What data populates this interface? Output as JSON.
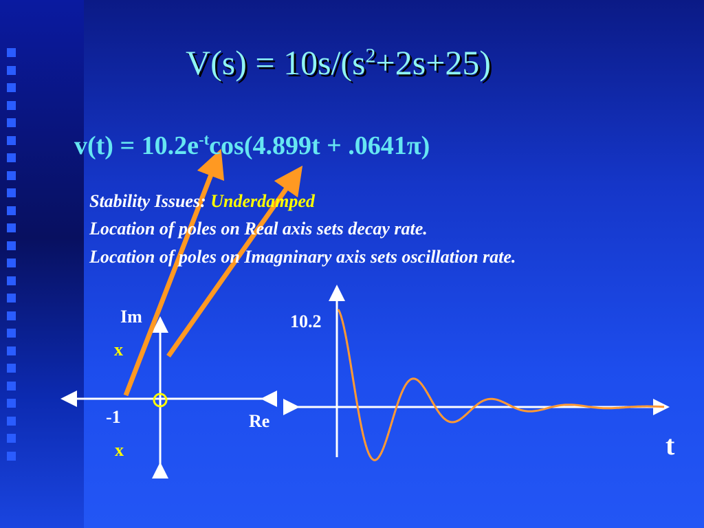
{
  "title": {
    "base": "V(s) = 10s/(s",
    "sup": "2",
    "rest": "+2s+25)"
  },
  "equation": {
    "base": "v(t) = 10.2e",
    "sup": "-t",
    "rest": "cos(4.899t + .0641π)"
  },
  "notes": {
    "label": "Stability Issues: ",
    "highlight": "Underdamped",
    "lines": [
      "Location of poles on Real axis sets decay rate.",
      "Location of poles on Imagninary axis sets oscillation rate."
    ]
  },
  "pole_plot": {
    "y_axis": "Im",
    "x_axis": "Re",
    "pole_top": "x",
    "pole_bottom": "x",
    "real_part": "-1"
  },
  "response_plot": {
    "peak": "10.2",
    "x_axis": "t"
  }
}
